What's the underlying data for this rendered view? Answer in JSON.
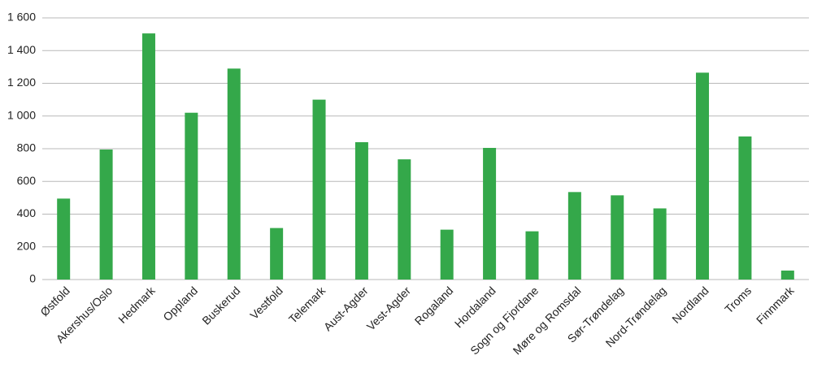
{
  "chart_data": {
    "type": "bar",
    "categories": [
      "Østfold",
      "Akershus/Oslo",
      "Hedmark",
      "Oppland",
      "Buskerud",
      "Vestfold",
      "Telemark",
      "Aust-Agder",
      "Vest-Agder",
      "Rogaland",
      "Hordaland",
      "Sogn og Fjordane",
      "Møre og Romsdal",
      "Sør-Trøndelag",
      "Nord-Trøndelag",
      "Nordland",
      "Troms",
      "Finnmark"
    ],
    "values": [
      495,
      795,
      1505,
      1020,
      1290,
      315,
      1100,
      840,
      735,
      305,
      805,
      295,
      535,
      515,
      435,
      1265,
      875,
      55
    ],
    "color": "#34a84a",
    "ylim": [
      0,
      1600
    ],
    "yticks": [
      0,
      200,
      400,
      600,
      800,
      {
        "value": 1000,
        "label": "1 000"
      },
      {
        "value": 1200,
        "label": "1 200"
      },
      {
        "value": 1400,
        "label": "1 400"
      },
      {
        "value": 1600,
        "label": "1 600"
      }
    ],
    "grid": true
  }
}
